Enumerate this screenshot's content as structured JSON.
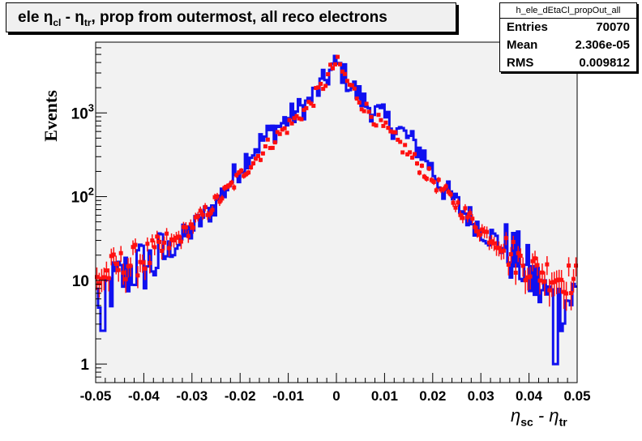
{
  "title": {
    "prefix": "ele η",
    "sub1": "cl",
    "mid": " - η",
    "sub2": "tr",
    "suffix": ", prop from outermost, all reco electrons"
  },
  "stats": {
    "name": "h_ele_dEtaCl_propOut_all",
    "rows": [
      {
        "label": "Entries",
        "value": "70070"
      },
      {
        "label": "Mean",
        "value": "2.306e-05"
      },
      {
        "label": "RMS",
        "value": "0.009812"
      }
    ]
  },
  "xlabel": {
    "main": "η",
    "sub1": "sc",
    "mid": " - η",
    "sub2": "tr"
  },
  "ylabel": "Events",
  "chart_data": {
    "type": "line",
    "yscale": "log",
    "xlim": [
      -0.05,
      0.05
    ],
    "ylim": [
      0.6,
      7000
    ],
    "x_ticks": [
      "-0.05",
      "-0.04",
      "-0.03",
      "-0.02",
      "-0.01",
      "0",
      "0.01",
      "0.02",
      "0.03",
      "0.04",
      "0.05"
    ],
    "y_ticks": [
      {
        "v": 1,
        "t": "1"
      },
      {
        "v": 10,
        "t": "10"
      },
      {
        "v": 100,
        "t": "10",
        "e": "2"
      },
      {
        "v": 1000,
        "t": "10",
        "e": "3"
      }
    ],
    "background": "#f2f2f2",
    "series": [
      {
        "style": "histogram",
        "color": "#1010f0",
        "x": [
          -0.05,
          -0.046,
          -0.042,
          -0.038,
          -0.034,
          -0.03,
          -0.026,
          -0.022,
          -0.018,
          -0.014,
          -0.01,
          -0.006,
          -0.004,
          -0.002,
          -0.001,
          0,
          0.001,
          0.002,
          0.004,
          0.006,
          0.01,
          0.014,
          0.018,
          0.022,
          0.026,
          0.03,
          0.034,
          0.038,
          0.042,
          0.046,
          0.05
        ],
        "y": [
          6,
          9,
          14,
          16,
          25,
          40,
          70,
          150,
          330,
          560,
          850,
          1300,
          1800,
          2600,
          3300,
          3800,
          3300,
          2600,
          1800,
          1300,
          850,
          560,
          330,
          130,
          70,
          42,
          27,
          17,
          8,
          5,
          7
        ]
      },
      {
        "style": "markers",
        "color": "#ff1010",
        "x": [
          -0.05,
          -0.046,
          -0.042,
          -0.038,
          -0.034,
          -0.03,
          -0.026,
          -0.022,
          -0.018,
          -0.014,
          -0.01,
          -0.006,
          -0.004,
          -0.002,
          -0.001,
          0,
          0.001,
          0.002,
          0.004,
          0.006,
          0.01,
          0.014,
          0.018,
          0.022,
          0.026,
          0.03,
          0.034,
          0.038,
          0.042,
          0.046,
          0.05
        ],
        "y": [
          10,
          14,
          17,
          20,
          28,
          45,
          75,
          130,
          240,
          420,
          700,
          1150,
          1700,
          2500,
          3400,
          4000,
          3400,
          2500,
          1700,
          1150,
          650,
          380,
          210,
          120,
          70,
          40,
          27,
          17,
          13,
          11,
          10
        ]
      }
    ]
  }
}
